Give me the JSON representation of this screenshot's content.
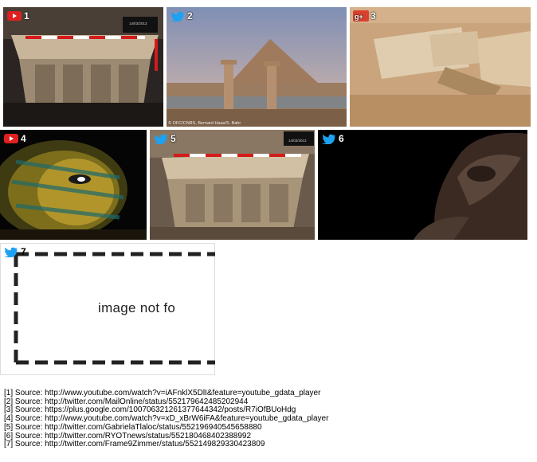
{
  "gallery": {
    "tiles": [
      {
        "number": "1",
        "source_type": "youtube-icon"
      },
      {
        "number": "2",
        "source_type": "twitter-bird-icon"
      },
      {
        "number": "3",
        "source_type": "google-plus-icon"
      },
      {
        "number": "4",
        "source_type": "youtube-icon"
      },
      {
        "number": "5",
        "source_type": "twitter-bird-icon"
      },
      {
        "number": "6",
        "source_type": "twitter-bird-icon"
      },
      {
        "number": "7",
        "source_type": "twitter-bird-icon",
        "placeholder_text": "image not fo"
      }
    ],
    "photo_captions": {
      "tile1_tag": "14/03/2013",
      "tile2_credit": "© OFC/CNRS, Bernard Haas/S. Bahr",
      "tile5_tag": "14/03/2013"
    }
  },
  "sources": [
    "[1] Source: http://www.youtube.com/watch?v=iAFnklX5DlI&feature=youtube_gdata_player",
    "[2] Source: http://twitter.com/MailOnline/status/552179642485202944",
    "[3] Source: https://plus.google.com/100706321261377644342/posts/R7iOfBUoHdg",
    "[4] Source: http://www.youtube.com/watch?v=xD_xBrW6iFA&feature=youtube_gdata_player",
    "[5] Source: http://twitter.com/GabrielaTlaloc/status/552196940545658880",
    "[6] Source: http://twitter.com/RYOTnews/status/552180468402388992",
    "[7] Source: http://twitter.com/Frame9Zimmer/status/552149829330423809"
  ],
  "colors": {
    "youtube": "#e02020",
    "twitter": "#1da1f2",
    "google_plus": "#d9412f"
  }
}
